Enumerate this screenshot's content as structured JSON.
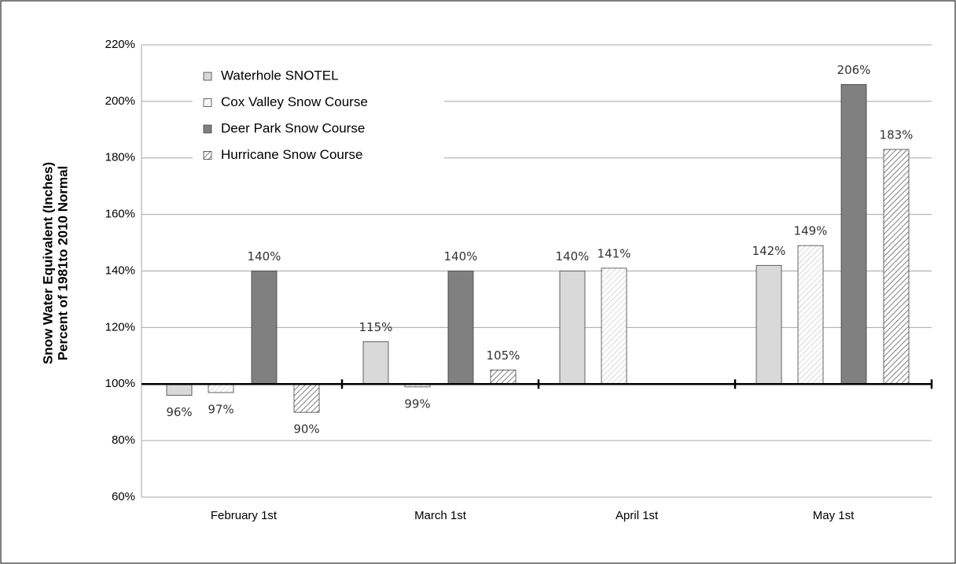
{
  "chart_data": {
    "type": "bar",
    "ylabel": [
      "Snow Water Equivalent (Inches)",
      "Percent of 1981to 2010 Normal"
    ],
    "categories": [
      "February 1st",
      "March 1st",
      "April 1st",
      "May 1st"
    ],
    "baseline": 100,
    "ylim": [
      60,
      220
    ],
    "yticks": [
      {
        "value": 60,
        "label": "60%"
      },
      {
        "value": 80,
        "label": "80%"
      },
      {
        "value": 100,
        "label": "100%"
      },
      {
        "value": 120,
        "label": "120%"
      },
      {
        "value": 140,
        "label": "140%"
      },
      {
        "value": 160,
        "label": "160%"
      },
      {
        "value": 180,
        "label": "180%"
      },
      {
        "value": 200,
        "label": "200%"
      },
      {
        "value": 220,
        "label": "220%"
      }
    ],
    "grid": true,
    "legend": "upper left",
    "series": [
      {
        "name": "Waterhole SNOTEL",
        "color": "#d9d9d9",
        "hatch": false,
        "values": [
          96,
          115,
          140,
          142
        ],
        "value_labels": [
          "96%",
          "115%",
          "140%",
          "142%"
        ]
      },
      {
        "name": "Cox Valley Snow Course",
        "color": "#bfbfbf",
        "hatch": true,
        "values": [
          97,
          99,
          141,
          149
        ],
        "value_labels": [
          "97%",
          "99%",
          "141%",
          "149%"
        ]
      },
      {
        "name": "Deer Park Snow Course",
        "color": "#808080",
        "hatch": false,
        "values": [
          140,
          140,
          null,
          206
        ],
        "value_labels": [
          "140%",
          "140%",
          null,
          "206%"
        ]
      },
      {
        "name": "Hurricane Snow Course",
        "color": "#7f7f7f",
        "hatch": true,
        "values": [
          90,
          105,
          null,
          183
        ],
        "value_labels": [
          "90%",
          "105%",
          null,
          "183%"
        ]
      }
    ]
  }
}
